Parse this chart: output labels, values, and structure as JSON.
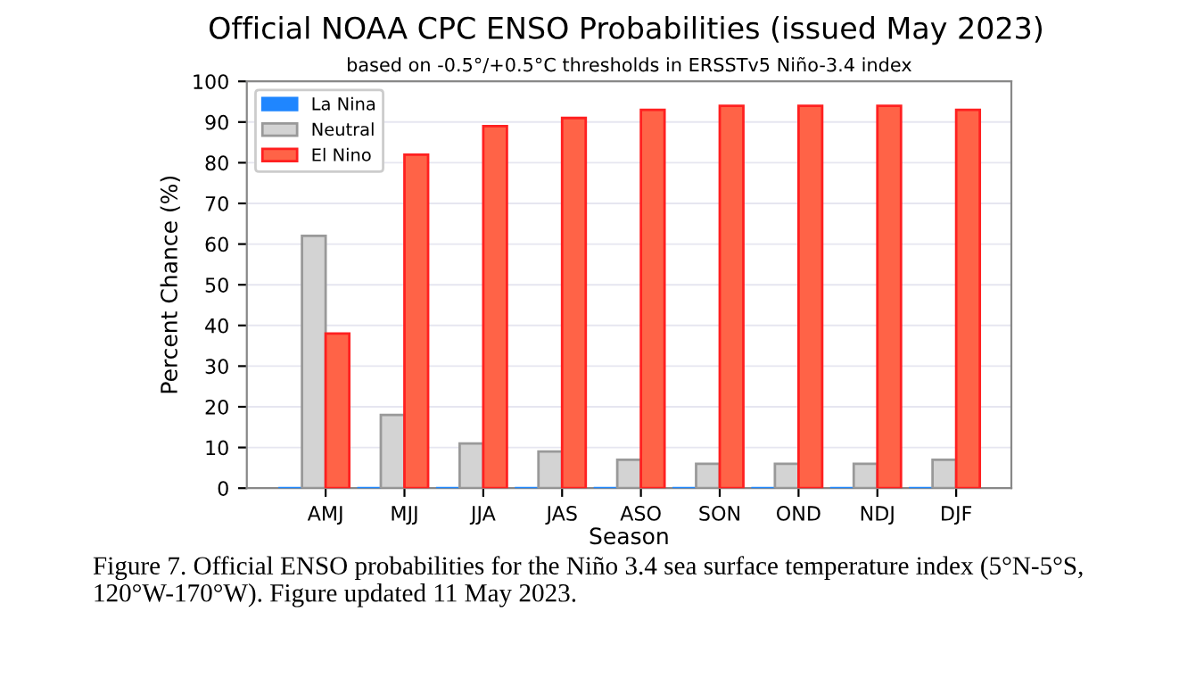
{
  "chart_data": {
    "type": "bar",
    "title": "Official NOAA CPC ENSO Probabilities (issued May 2023)",
    "subtitle": "based on -0.5°/+0.5°C thresholds in ERSSTv5 Niño-3.4 index",
    "xlabel": "Season",
    "ylabel": "Percent Chance (%)",
    "categories": [
      "AMJ",
      "MJJ",
      "JJA",
      "JAS",
      "ASO",
      "SON",
      "OND",
      "NDJ",
      "DJF"
    ],
    "series": [
      {
        "name": "La Nina",
        "color": "#1f86ff",
        "values": [
          0,
          0,
          0,
          0,
          0,
          0,
          0,
          0,
          0
        ]
      },
      {
        "name": "Neutral",
        "color": "#d3d3d3",
        "values": [
          62,
          18,
          11,
          9,
          7,
          6,
          6,
          6,
          7
        ]
      },
      {
        "name": "El Nino",
        "color": "#ff6347",
        "values": [
          38,
          82,
          89,
          91,
          93,
          94,
          94,
          94,
          93
        ]
      }
    ],
    "ylim": [
      0,
      100
    ],
    "yticks": [
      0,
      10,
      20,
      30,
      40,
      50,
      60,
      70,
      80,
      90,
      100
    ],
    "grid": "y",
    "legend": "top left",
    "annotations": [
      "Figure 7. Official ENSO probabilities for the Niño 3.4 sea surface temperature index (5°N-5°S, 120°W-170°W). Figure updated 11 May 2023."
    ]
  }
}
